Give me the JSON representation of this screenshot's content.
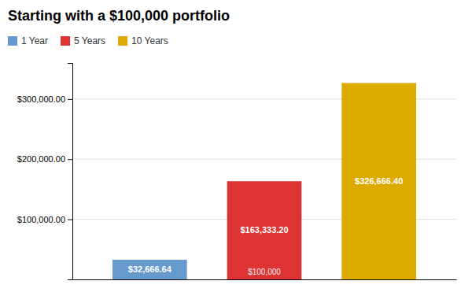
{
  "chart_data": {
    "type": "bar",
    "title": "Starting with a $100,000 portfolio",
    "categories": [
      "1 Year",
      "5 Years",
      "10 Years"
    ],
    "values": [
      32666.64,
      163333.2,
      326666.4
    ],
    "value_labels": [
      "$32,666.64",
      "$163,333.20",
      "$326,666.40"
    ],
    "data_labels": true,
    "colors": [
      "#6699cc",
      "#dd3333",
      "#ddaa00"
    ],
    "ylim": [
      0,
      360000
    ],
    "yticks": [
      {
        "value": 100000,
        "label": "$100,000.00"
      },
      {
        "value": 200000,
        "label": "$200,000.00"
      },
      {
        "value": 300000,
        "label": "$300,000.00"
      }
    ],
    "grid": true,
    "legend": "top-left",
    "tick_labels": "y",
    "annotations": [
      {
        "text": "$100,000",
        "category": "5 Years"
      }
    ]
  }
}
